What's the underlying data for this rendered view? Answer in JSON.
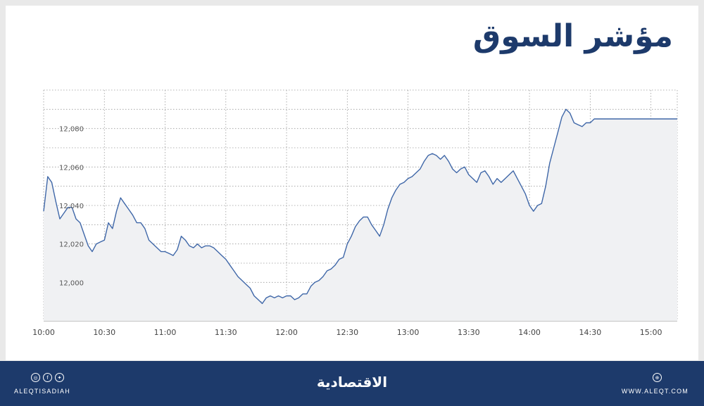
{
  "title": "مؤشر السوق",
  "footer": {
    "brand": "الاقتصادية",
    "handle": "ALEQTISADIAH",
    "site": "WWW.ALEQT.COM",
    "icons": [
      "instagram-icon",
      "facebook-icon",
      "twitter-icon",
      "globe-icon"
    ]
  },
  "colors": {
    "line": "#3f67a8",
    "fill": "#f0f1f3",
    "grid": "#9a9a9a",
    "brand": "#1d3a6b"
  },
  "chart_data": {
    "type": "area",
    "xlabel": "",
    "ylabel": "",
    "x_ticks": [
      "10:00",
      "10:30",
      "11:00",
      "11:30",
      "12:00",
      "12:30",
      "13:00",
      "13:30",
      "14:00",
      "14:30",
      "15:00"
    ],
    "y_ticks": [
      "12,000",
      "12,020",
      "12,040",
      "12,060",
      "12,080"
    ],
    "x_range_minutes": [
      0,
      313
    ],
    "ylim": [
      11980,
      12100
    ],
    "grid": true,
    "series": [
      {
        "x": [
          0,
          2,
          4,
          6,
          8,
          10,
          12,
          14,
          16,
          18,
          20,
          22,
          24,
          26,
          28,
          30,
          32,
          34,
          36,
          38,
          40,
          42,
          44,
          46,
          48,
          50,
          52,
          54,
          56,
          58,
          60,
          62,
          64,
          66,
          68,
          70,
          72,
          74,
          76,
          78,
          80,
          82,
          84,
          86,
          88,
          90,
          92,
          94,
          96,
          98,
          100,
          102,
          104,
          106,
          108,
          110,
          112,
          114,
          116,
          118,
          120,
          122,
          124,
          126,
          128,
          130,
          132,
          134,
          136,
          138,
          140,
          142,
          144,
          146,
          148,
          150,
          152,
          154,
          156,
          158,
          160,
          162,
          164,
          166,
          168,
          170,
          172,
          174,
          176,
          178,
          180,
          182,
          184,
          186,
          188,
          190,
          192,
          194,
          196,
          198,
          200,
          202,
          204,
          206,
          208,
          210,
          212,
          214,
          216,
          218,
          220,
          222,
          224,
          226,
          228,
          230,
          232,
          234,
          236,
          238,
          240,
          242,
          244,
          246,
          248,
          250,
          252,
          254,
          256,
          258,
          260,
          262,
          264,
          266,
          268,
          270,
          272,
          274,
          276,
          278,
          280,
          282,
          284,
          286,
          288,
          290,
          292,
          294,
          296,
          298,
          300,
          302,
          304,
          306,
          308,
          310,
          313
        ],
        "values": [
          12037,
          12055,
          12052,
          12042,
          12033,
          12036,
          12039,
          12039,
          12033,
          12031,
          12025,
          12019,
          12016,
          12020,
          12021,
          12022,
          12031,
          12028,
          12037,
          12044,
          12041,
          12038,
          12035,
          12031,
          12031,
          12028,
          12022,
          12020,
          12018,
          12016,
          12016,
          12015,
          12014,
          12017,
          12024,
          12022,
          12019,
          12018,
          12020,
          12018,
          12019,
          12019,
          12018,
          12016,
          12014,
          12012,
          12009,
          12006,
          12003,
          12001,
          11999,
          11997,
          11993,
          11991,
          11989,
          11992,
          11993,
          11992,
          11993,
          11992,
          11993,
          11993,
          11991,
          11992,
          11994,
          11994,
          11998,
          12000,
          12001,
          12003,
          12006,
          12007,
          12009,
          12012,
          12013,
          12020,
          12024,
          12029,
          12032,
          12034,
          12034,
          12030,
          12027,
          12024,
          12030,
          12038,
          12044,
          12048,
          12051,
          12052,
          12054,
          12055,
          12057,
          12059,
          12063,
          12066,
          12067,
          12066,
          12064,
          12066,
          12063,
          12059,
          12057,
          12059,
          12060,
          12056,
          12054,
          12052,
          12057,
          12058,
          12055,
          12051,
          12054,
          12052,
          12054,
          12056,
          12058,
          12054,
          12050,
          12046,
          12040,
          12037,
          12040,
          12041,
          12050,
          12062,
          12070,
          12078,
          12086,
          12090,
          12088,
          12083,
          12082,
          12081,
          12083,
          12083,
          12085,
          12085,
          12085,
          12085,
          12085,
          12085,
          12085,
          12085,
          12085,
          12085,
          12085,
          12085,
          12085,
          12085,
          12085,
          12085,
          12085,
          12085,
          12085,
          12085,
          12085
        ]
      }
    ]
  }
}
